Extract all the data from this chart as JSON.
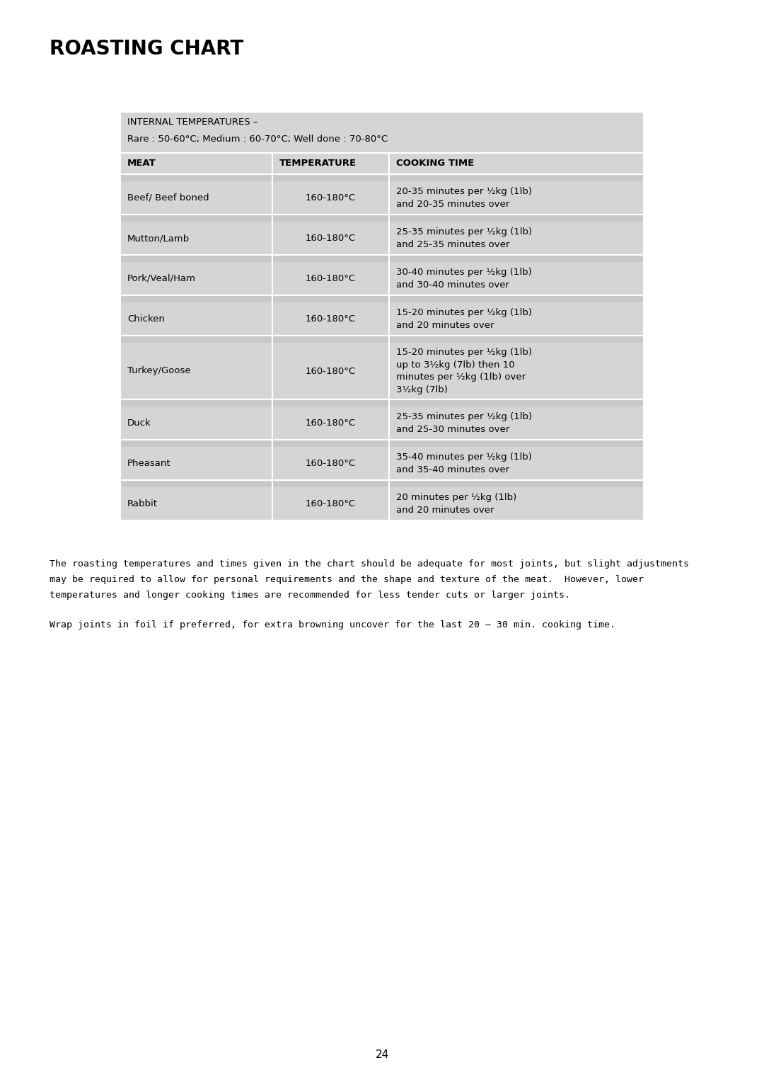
{
  "title": "ROASTING CHART",
  "page_number": "24",
  "internal_temp_header_line1": "INTERNAL TEMPERATURES –",
  "internal_temp_header_line2": "Rare : 50-60°C; Medium : 60-70°C; Well done : 70-80°C",
  "col_headers": [
    "MEAT",
    "TEMPERATURE",
    "COOKING TIME"
  ],
  "rows": [
    {
      "meat": "Beef/ Beef boned",
      "temp": "160-180°C",
      "time": "20-35 minutes per ½kg (1lb)\nand 20-35 minutes over"
    },
    {
      "meat": "Mutton/Lamb",
      "temp": "160-180°C",
      "time": "25-35 minutes per ½kg (1lb)\nand 25-35 minutes over"
    },
    {
      "meat": "Pork/Veal/Ham",
      "temp": "160-180°C",
      "time": "30-40 minutes per ½kg (1lb)\nand 30-40 minutes over"
    },
    {
      "meat": "Chicken",
      "temp": "160-180°C",
      "time": "15-20 minutes per ½kg (1lb)\nand 20 minutes over"
    },
    {
      "meat": "Turkey/Goose",
      "temp": "160-180°C",
      "time": "15-20 minutes per ½kg (1lb)\nup to 3½kg (7lb) then 10\nminutes per ½kg (1lb) over\n3½kg (7lb)"
    },
    {
      "meat": "Duck",
      "temp": "160-180°C",
      "time": "25-35 minutes per ½kg (1lb)\nand 25-30 minutes over"
    },
    {
      "meat": "Pheasant",
      "temp": "160-180°C",
      "time": "35-40 minutes per ½kg (1lb)\nand 35-40 minutes over"
    },
    {
      "meat": "Rabbit",
      "temp": "160-180°C",
      "time": "20 minutes per ½kg (1lb)\nand 20 minutes over"
    }
  ],
  "footer_text1_lines": [
    "The roasting temperatures and times given in the chart should be adequate for most joints, but slight adjustments",
    "may be required to allow for personal requirements and the shape and texture of the meat.  However, lower",
    "temperatures and longer cooking times are recommended for less tender cuts or larger joints."
  ],
  "footer_text2": "Wrap joints in foil if preferred, for extra browning uncover for the last 20 – 30 min. cooking time.",
  "bg_color": "#ffffff",
  "table_bg": "#d5d5d5",
  "spacer_bg": "#c8c8c8",
  "white_line": "#ffffff",
  "title_fontsize": 20,
  "header_fontsize": 9.5,
  "body_fontsize": 9.5,
  "footer_fontsize": 9.5
}
